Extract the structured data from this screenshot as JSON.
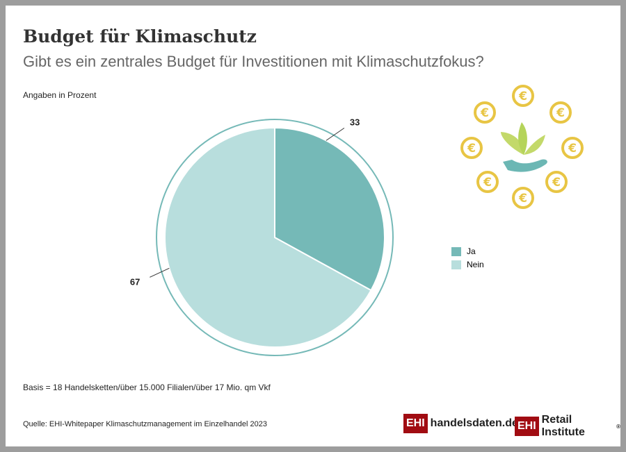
{
  "header": {
    "title": "Budget für Klimaschutz",
    "subtitle": "Gibt es ein zentrales Budget für Investitionen mit Klimaschutzfokus?"
  },
  "footer": {
    "basis": "Basis = 18 Handelsketten/über 15.000 Filialen/über 17 Mio. qm Vkf",
    "source": "Quelle: EHI-Whitepaper Klimaschutzmanagement im Einzelhandel 2023"
  },
  "logos": {
    "ehi": "EHI",
    "handelsdaten": "handelsdaten.de",
    "retail": "Retail Institute",
    "registered": "®"
  },
  "icon": {
    "coin_symbol": "€",
    "name": "hand-plant-euro-icon"
  },
  "chart_data": {
    "type": "pie",
    "title": "Budget für Klimaschutz",
    "unit_label": "Angaben in Prozent",
    "categories": [
      "Ja",
      "Nein"
    ],
    "values": [
      33,
      67
    ],
    "labels": [
      "33",
      "67"
    ],
    "colors": [
      "#75b9b7",
      "#b8dedd"
    ],
    "ring_color": "#75b9b7",
    "legend_position": "right"
  }
}
